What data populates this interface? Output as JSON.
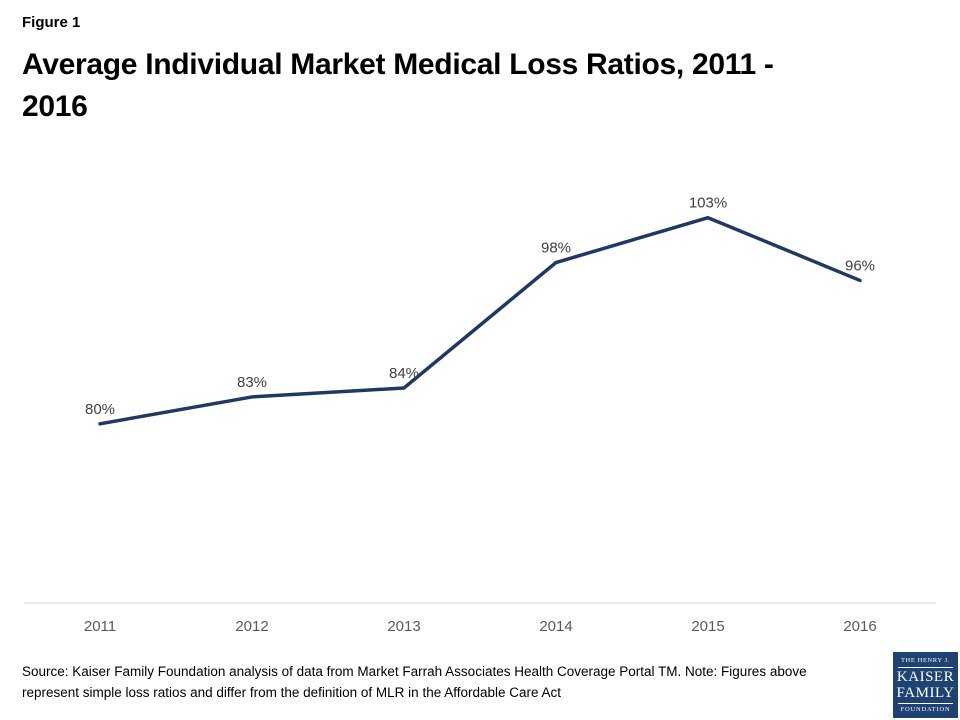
{
  "figure_label": "Figure 1",
  "title_lines": [
    "Average Individual Market Medical Loss Ratios, 2011 -",
    "2016"
  ],
  "chart_data": {
    "type": "line",
    "title": "Average Individual Market Medical Loss Ratios, 2011 - 2016",
    "categories": [
      "2011",
      "2012",
      "2013",
      "2014",
      "2015",
      "2016"
    ],
    "series": [
      {
        "name": "Average individual market medical loss ratio",
        "values": [
          80,
          83,
          84,
          98,
          103,
          96
        ]
      }
    ],
    "labels": [
      "80%",
      "83%",
      "84%",
      "98%",
      "103%",
      "96%"
    ],
    "xlabel": "",
    "ylabel": "",
    "ylim": [
      60,
      110
    ],
    "grid": false,
    "legend": "none",
    "line_color": "#1F3864",
    "label_color": "#404040",
    "tick_color": "#595959",
    "axis_color": "#D9D9D9"
  },
  "source": {
    "lines": [
      "Source: Kaiser Family Foundation analysis of data from Market Farrah Associates Health Coverage Portal TM. Note: Figures above",
      "represent simple loss ratios and differ from the definition of MLR in the Affordable Care Act"
    ]
  },
  "logo": {
    "top": "THE HENRY J.",
    "name_line1": "KAISER",
    "name_line2": "FAMILY",
    "bottom": "FOUNDATION",
    "bg_color": "#1E4372"
  }
}
